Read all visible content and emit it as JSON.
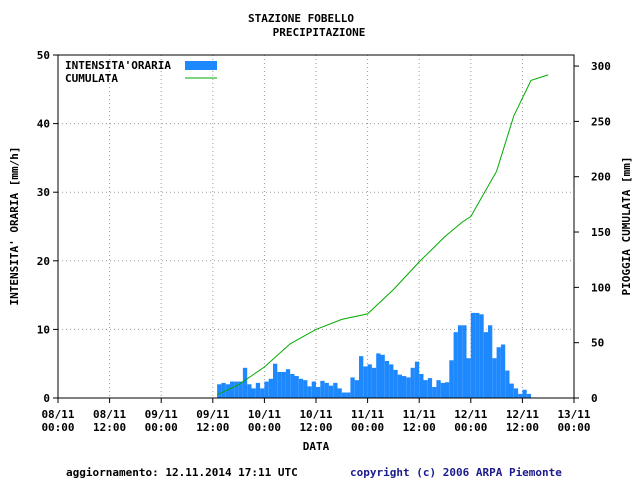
{
  "chart_data": {
    "type": "bar",
    "title": "STAZIONE FOBELLO",
    "subtitle": "PRECIPITAZIONE",
    "xlabel": "DATA",
    "ylabel": "INTENSITA' ORARIA [mm/h]",
    "y2label": "PIOGGIA CUMULATA [mm]",
    "ylim": [
      0,
      50
    ],
    "y2lim": [
      0,
      310
    ],
    "yticks": [
      "0",
      "10",
      "20",
      "30",
      "40",
      "50"
    ],
    "y2ticks": [
      "0",
      "50",
      "100",
      "150",
      "200",
      "250",
      "300"
    ],
    "xticks": [
      {
        "day": "08/11",
        "time": "00:00"
      },
      {
        "day": "08/11",
        "time": "12:00"
      },
      {
        "day": "09/11",
        "time": "00:00"
      },
      {
        "day": "09/11",
        "time": "12:00"
      },
      {
        "day": "10/11",
        "time": "00:00"
      },
      {
        "day": "10/11",
        "time": "12:00"
      },
      {
        "day": "11/11",
        "time": "00:00"
      },
      {
        "day": "11/11",
        "time": "12:00"
      },
      {
        "day": "12/11",
        "time": "00:00"
      },
      {
        "day": "12/11",
        "time": "12:00"
      },
      {
        "day": "13/11",
        "time": "00:00"
      }
    ],
    "grid": true,
    "legend_position": "top-left",
    "series": [
      {
        "name": "INTENSITA'ORARIA",
        "kind": "bar",
        "color": "#1e88ff",
        "start": "2014-11-09 13:00",
        "step_hours": 1,
        "values": [
          2.0,
          2.2,
          2.0,
          2.4,
          2.4,
          2.4,
          4.4,
          2.0,
          1.4,
          2.2,
          1.4,
          2.4,
          2.8,
          5.0,
          3.8,
          3.8,
          4.2,
          3.5,
          3.2,
          2.8,
          2.6,
          1.7,
          2.4,
          1.6,
          2.5,
          2.2,
          1.8,
          2.2,
          1.4,
          0.8,
          0.8,
          3.0,
          2.6,
          6.1,
          4.6,
          4.9,
          4.4,
          6.5,
          6.3,
          5.4,
          4.9,
          4.1,
          3.4,
          3.2,
          3.0,
          4.4,
          5.3,
          3.5,
          2.6,
          2.9,
          1.6,
          2.6,
          2.2,
          2.3,
          5.5,
          9.6,
          10.6,
          10.6,
          5.8,
          12.4,
          12.4,
          12.2,
          9.6,
          10.6,
          5.8,
          7.4,
          7.8,
          4.0,
          2.1,
          1.4,
          0.6,
          1.2,
          0.6
        ]
      },
      {
        "name": "CUMULATA",
        "kind": "line",
        "color": "#00aa00",
        "x": [
          "2014-11-09 13:00",
          "2014-11-09 18:00",
          "2014-11-10 00:00",
          "2014-11-10 06:00",
          "2014-11-10 12:00",
          "2014-11-10 18:00",
          "2014-11-11 00:00",
          "2014-11-11 06:00",
          "2014-11-11 12:00",
          "2014-11-11 18:00",
          "2014-11-11 22:00",
          "2014-11-12 00:00",
          "2014-11-12 06:00",
          "2014-11-12 10:00",
          "2014-11-12 14:00",
          "2014-11-12 18:00"
        ],
        "values": [
          3,
          12,
          28,
          49,
          62,
          71,
          76,
          98,
          123,
          146,
          159,
          164,
          205,
          255,
          287,
          292
        ]
      }
    ]
  },
  "footer": {
    "updated": "aggiornamento: 12.11.2014 17:11 UTC",
    "copyright": "copyright (c) 2006 ARPA Piemonte"
  }
}
